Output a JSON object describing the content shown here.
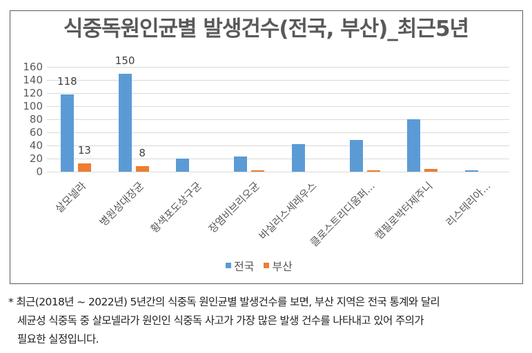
{
  "chart_data": {
    "type": "bar",
    "title": "식중독원인균별 발생건수(전국, 부산)_최근5년",
    "xlabel": "",
    "ylabel": "",
    "ylim": [
      0,
      160
    ],
    "yticks": [
      0,
      20,
      40,
      60,
      80,
      100,
      120,
      140,
      160
    ],
    "grid": true,
    "legend_position": "bottom",
    "categories": [
      "살모넬라",
      "병원성대장균",
      "황색포도상구균",
      "장염비브리오균",
      "바실러스세레우스",
      "클로스트리디움퍼...",
      "캠필로박터제주니",
      "리스테리아..."
    ],
    "series": [
      {
        "name": "전국",
        "color": "#5b9bd5",
        "values": [
          118,
          150,
          20,
          23,
          42,
          48,
          80,
          2
        ]
      },
      {
        "name": "부산",
        "color": "#ed7d31",
        "values": [
          13,
          8,
          0,
          2,
          0,
          2,
          4,
          0
        ]
      }
    ],
    "data_labels": [
      {
        "category": "살모넬라",
        "series": "전국",
        "text": "118"
      },
      {
        "category": "살모넬라",
        "series": "부산",
        "text": "13"
      },
      {
        "category": "병원성대장균",
        "series": "전국",
        "text": "150"
      },
      {
        "category": "병원성대장균",
        "series": "부산",
        "text": "8"
      }
    ]
  },
  "legend": [
    {
      "label": "전국",
      "color": "#5b9bd5"
    },
    {
      "label": "부산",
      "color": "#ed7d31"
    }
  ],
  "note": {
    "line1": "* 최근(2018년 ~ 2022년) 5년간의 식중독 원인균별 발생건수를 보면, 부산 지역은 전국 통계와 달리",
    "line2": "세균성 식중독 중 살모넬라가 원인인 식중독 사고가 가장 많은 발생 건수를 나타내고 있어 주의가",
    "line3": "필요한 실정입니다."
  }
}
